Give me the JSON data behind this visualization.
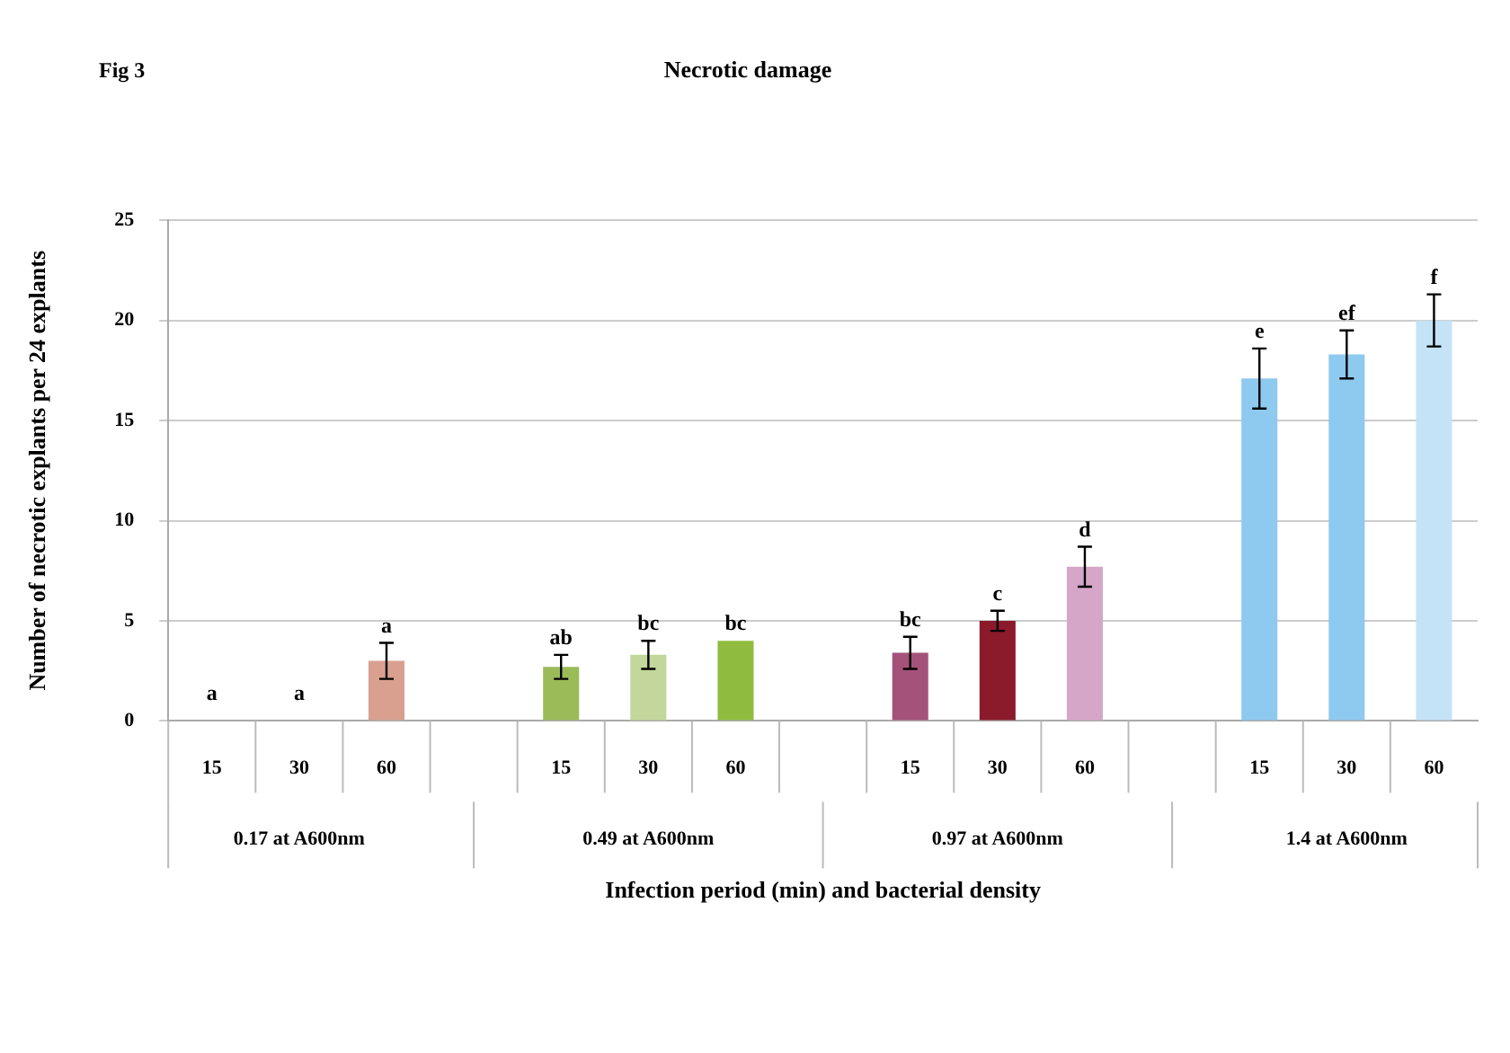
{
  "chart_data": {
    "type": "bar",
    "title": "Necrotic damage",
    "xlabel": "Infection period (min) and bacterial density",
    "ylabel": "Number of necrotic explants per 24 explants",
    "annotations": [
      "Fig 3",
      "0.17 at A600nm",
      "0.49 at A600nm",
      "0.97 at A600nm",
      "1.4 at A600nm"
    ],
    "categories": [
      "15",
      "30",
      "60",
      null,
      "15",
      "30",
      "60",
      null,
      "15",
      "30",
      "60",
      null,
      "15",
      "30",
      "60"
    ],
    "values": [
      0,
      0,
      3,
      null,
      2.7,
      3.3,
      4,
      null,
      3.4,
      5,
      7.7,
      null,
      17.1,
      18.3,
      20
    ],
    "errors": [
      null,
      null,
      0.9,
      null,
      0.6,
      0.7,
      null,
      null,
      0.8,
      0.5,
      1,
      null,
      1.5,
      1.2,
      1.3
    ],
    "value_labels": [
      "a",
      "a",
      "a",
      null,
      "ab",
      "bc",
      "bc",
      null,
      "bc",
      "c",
      "d",
      null,
      "e",
      "ef",
      "f"
    ],
    "colors": [
      "#d9a090",
      "#d9a090",
      "#d9a090",
      "#ffffff",
      "#9bbb59",
      "#c3d69b",
      "#8fbc3f",
      "#ffffff",
      "#a5527a",
      "#8b1a2b",
      "#d6a6c8",
      "#ffffff",
      "#8ec9f0",
      "#8ec9f0",
      "#c5e3f7"
    ],
    "ylim": [
      0,
      25
    ],
    "yticks": [
      0,
      5,
      10,
      15,
      20,
      25
    ],
    "grid": "y",
    "legend": false
  }
}
